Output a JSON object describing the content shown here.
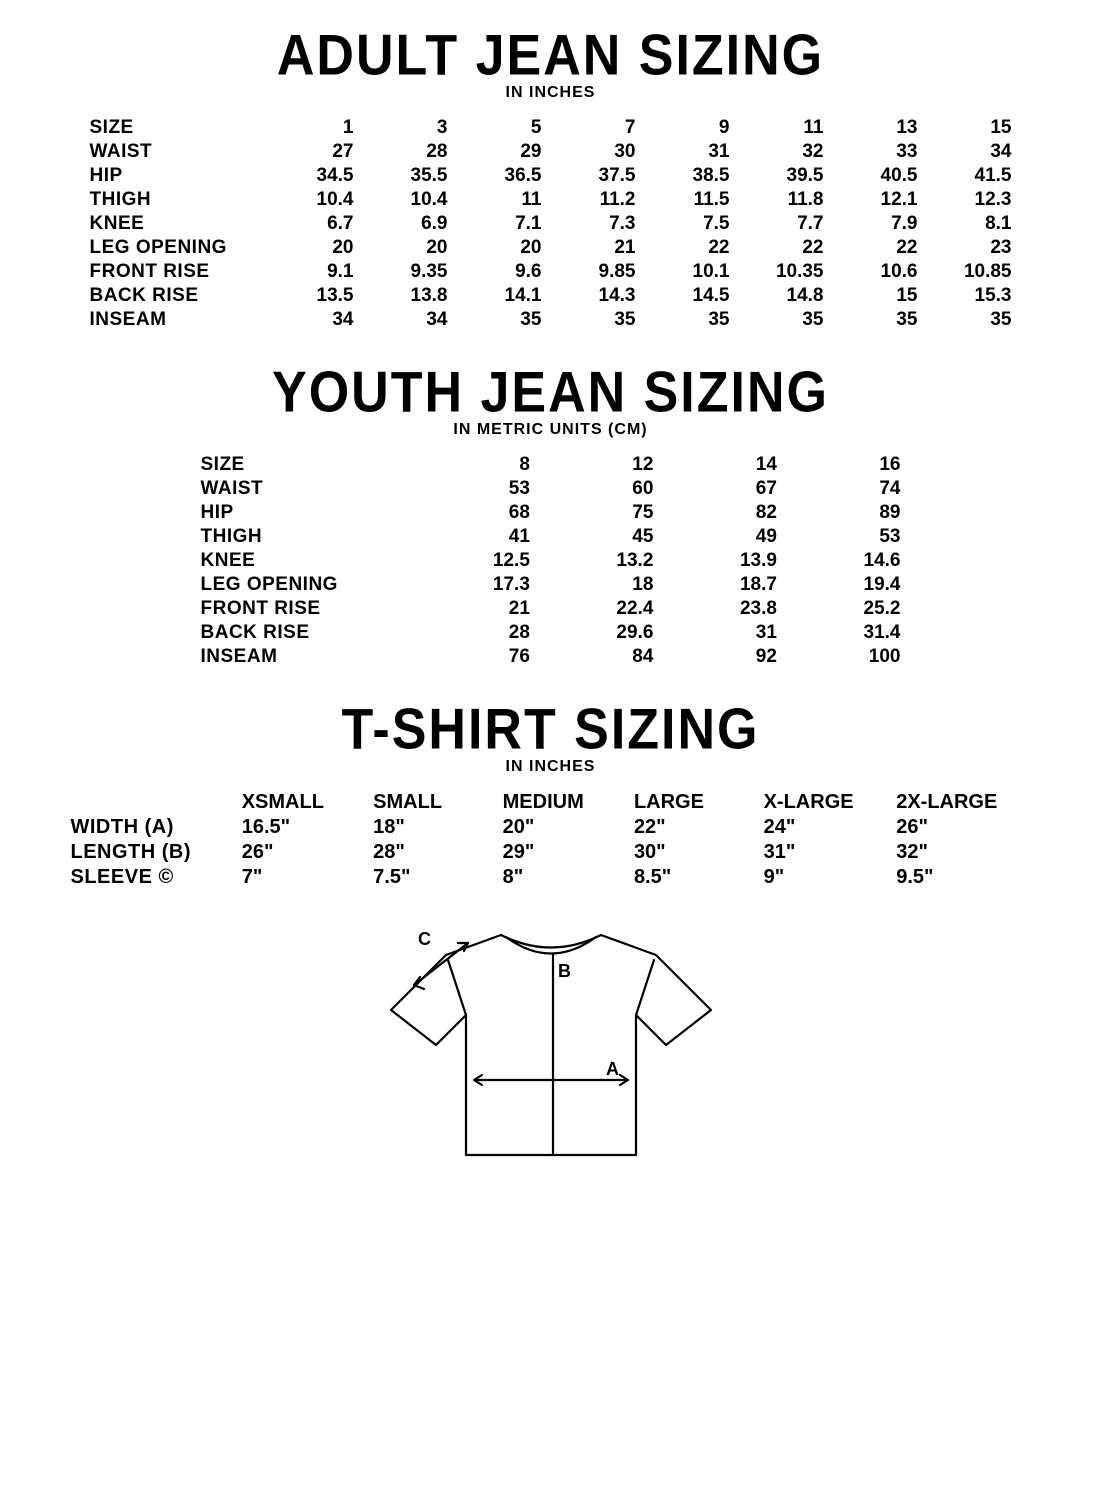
{
  "adult": {
    "title": "ADULT JEAN SIZING",
    "subtitle": "IN INCHES",
    "title_fontsize": 52,
    "subtitle_fontsize": 16,
    "sizes": [
      "1",
      "3",
      "5",
      "7",
      "9",
      "11",
      "13",
      "15"
    ],
    "rows": [
      {
        "label": "SIZE",
        "values": [
          "1",
          "3",
          "5",
          "7",
          "9",
          "11",
          "13",
          "15"
        ]
      },
      {
        "label": "WAIST",
        "values": [
          "27",
          "28",
          "29",
          "30",
          "31",
          "32",
          "33",
          "34"
        ]
      },
      {
        "label": "HIP",
        "values": [
          "34.5",
          "35.5",
          "36.5",
          "37.5",
          "38.5",
          "39.5",
          "40.5",
          "41.5"
        ]
      },
      {
        "label": "THIGH",
        "values": [
          "10.4",
          "10.4",
          "11",
          "11.2",
          "11.5",
          "11.8",
          "12.1",
          "12.3"
        ]
      },
      {
        "label": "KNEE",
        "values": [
          "6.7",
          "6.9",
          "7.1",
          "7.3",
          "7.5",
          "7.7",
          "7.9",
          "8.1"
        ]
      },
      {
        "label": "LEG OPENING",
        "values": [
          "20",
          "20",
          "20",
          "21",
          "22",
          "22",
          "22",
          "23"
        ]
      },
      {
        "label": "FRONT RISE",
        "values": [
          "9.1",
          "9.35",
          "9.6",
          "9.85",
          "10.1",
          "10.35",
          "10.6",
          "10.85"
        ]
      },
      {
        "label": "BACK RISE",
        "values": [
          "13.5",
          "13.8",
          "14.1",
          "14.3",
          "14.5",
          "14.8",
          "15",
          "15.3"
        ]
      },
      {
        "label": "INSEAM",
        "values": [
          "34",
          "34",
          "35",
          "35",
          "35",
          "35",
          "35",
          "35"
        ]
      }
    ]
  },
  "youth": {
    "title": "YOUTH JEAN SIZING",
    "subtitle": "IN METRIC UNITS (CM)",
    "title_fontsize": 52,
    "subtitle_fontsize": 16,
    "sizes": [
      "8",
      "12",
      "14",
      "16"
    ],
    "rows": [
      {
        "label": "SIZE",
        "values": [
          "8",
          "12",
          "14",
          "16"
        ]
      },
      {
        "label": "WAIST",
        "values": [
          "53",
          "60",
          "67",
          "74"
        ]
      },
      {
        "label": "HIP",
        "values": [
          "68",
          "75",
          "82",
          "89"
        ]
      },
      {
        "label": "THIGH",
        "values": [
          "41",
          "45",
          "49",
          "53"
        ]
      },
      {
        "label": "KNEE",
        "values": [
          "12.5",
          "13.2",
          "13.9",
          "14.6"
        ]
      },
      {
        "label": "LEG OPENING",
        "values": [
          "17.3",
          "18",
          "18.7",
          "19.4"
        ]
      },
      {
        "label": "FRONT RISE",
        "values": [
          "21",
          "22.4",
          "23.8",
          "25.2"
        ]
      },
      {
        "label": "BACK RISE",
        "values": [
          "28",
          "29.6",
          "31",
          "31.4"
        ]
      },
      {
        "label": "INSEAM",
        "values": [
          "76",
          "84",
          "92",
          "100"
        ]
      }
    ]
  },
  "tshirt": {
    "title": "T-SHIRT SIZING",
    "subtitle": "IN INCHES",
    "title_fontsize": 52,
    "subtitle_fontsize": 16,
    "headers": [
      "XSMALL",
      "SMALL",
      "MEDIUM",
      "LARGE",
      "X-LARGE",
      "2X-LARGE"
    ],
    "rows": [
      {
        "label": "WIDTH (A)",
        "values": [
          "16.5\"",
          "18\"",
          "20\"",
          "22\"",
          "24\"",
          "26\""
        ]
      },
      {
        "label": "LENGTH (B)",
        "values": [
          "26\"",
          "28\"",
          "29\"",
          "30\"",
          "31\"",
          "32\""
        ]
      },
      {
        "label": "SLEEVE ©",
        "values": [
          "7\"",
          "7.5\"",
          "8\"",
          "8.5\"",
          "9\"",
          "9.5\""
        ]
      }
    ],
    "diagram": {
      "labels": {
        "width": "A",
        "length": "B",
        "sleeve": "C"
      },
      "stroke": "#000000",
      "stroke_width": 2.2
    }
  },
  "colors": {
    "bg": "#ffffff",
    "text": "#000000"
  }
}
